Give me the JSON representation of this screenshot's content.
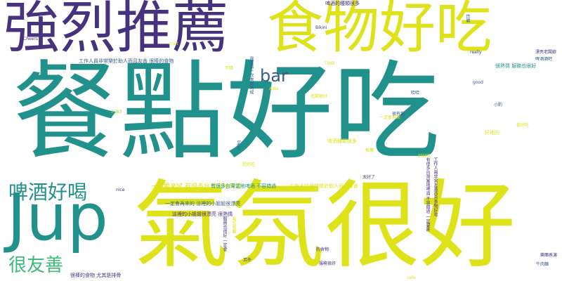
{
  "palette": {
    "purple": "#46327e",
    "lime": "#dde318",
    "teal": "#21918c",
    "green": "#3bbb75",
    "blue": "#365c8d"
  },
  "words": {
    "w01": "餐點好吃",
    "w02": "氣氛很好",
    "w03": "強烈推薦",
    "w04": "食物好吃",
    "w05": "Jup",
    "w06": "啤酒好喝",
    "w07": "很友善",
    "w08": "bar",
    "w09": "一定要來試 有很多台灣當地啤酒",
    "w10": "有很多台灣當地啤酒 不容錯過",
    "w11": "工作人員非常樂於助人而且友善 很棒的食物",
    "w12": "工作人員非常樂於助人而且友善",
    "w13": "很棒的食物 尤其是排骨",
    "w14": "這裡的小姐姐很漂亮 很熱情",
    "w15": "一定會再來的 這裡的小姐姐很漂亮",
    "w16": "啤酒的種類很多",
    "w17": "Bikini",
    "w18": "craft",
    "w19": "Aida",
    "w20": "TWD",
    "w21": "很熱情 服務也很好",
    "w22": "啤酒種類很多",
    "w23": "漂亮老闆娘",
    "w24": "啤酒酒吧",
    "w25": "哈哈",
    "w26": "good",
    "w27": "really",
    "w28": "好地方",
    "w29": "很好吃",
    "w30": "老闆很好",
    "w31": "太好了",
    "w32": "好好吃",
    "w33": "一定會再來",
    "w34": "另外",
    "w35": "的食物",
    "w36": "cafe",
    "w37": "beer",
    "w38": "服務很好",
    "w39": "牛肉麵",
    "w40": "樂團表演",
    "w41": "很有趣",
    "w42": "小酌",
    "w43": "不錯",
    "w44": "超好吃",
    "w45": "推薦",
    "w46": "2183",
    "w47": "Cheers",
    "w48": "nice",
    "w49": "有很多台灣當地啤酒 不容錯過 一定要來",
    "w50": "工作人員非常友善而且食物好吃",
    "w51": "我是第一次來的時候",
    "w52": "美式餐廳",
    "w53": "服務也很好 一定會",
    "w54": "炸雞"
  }
}
